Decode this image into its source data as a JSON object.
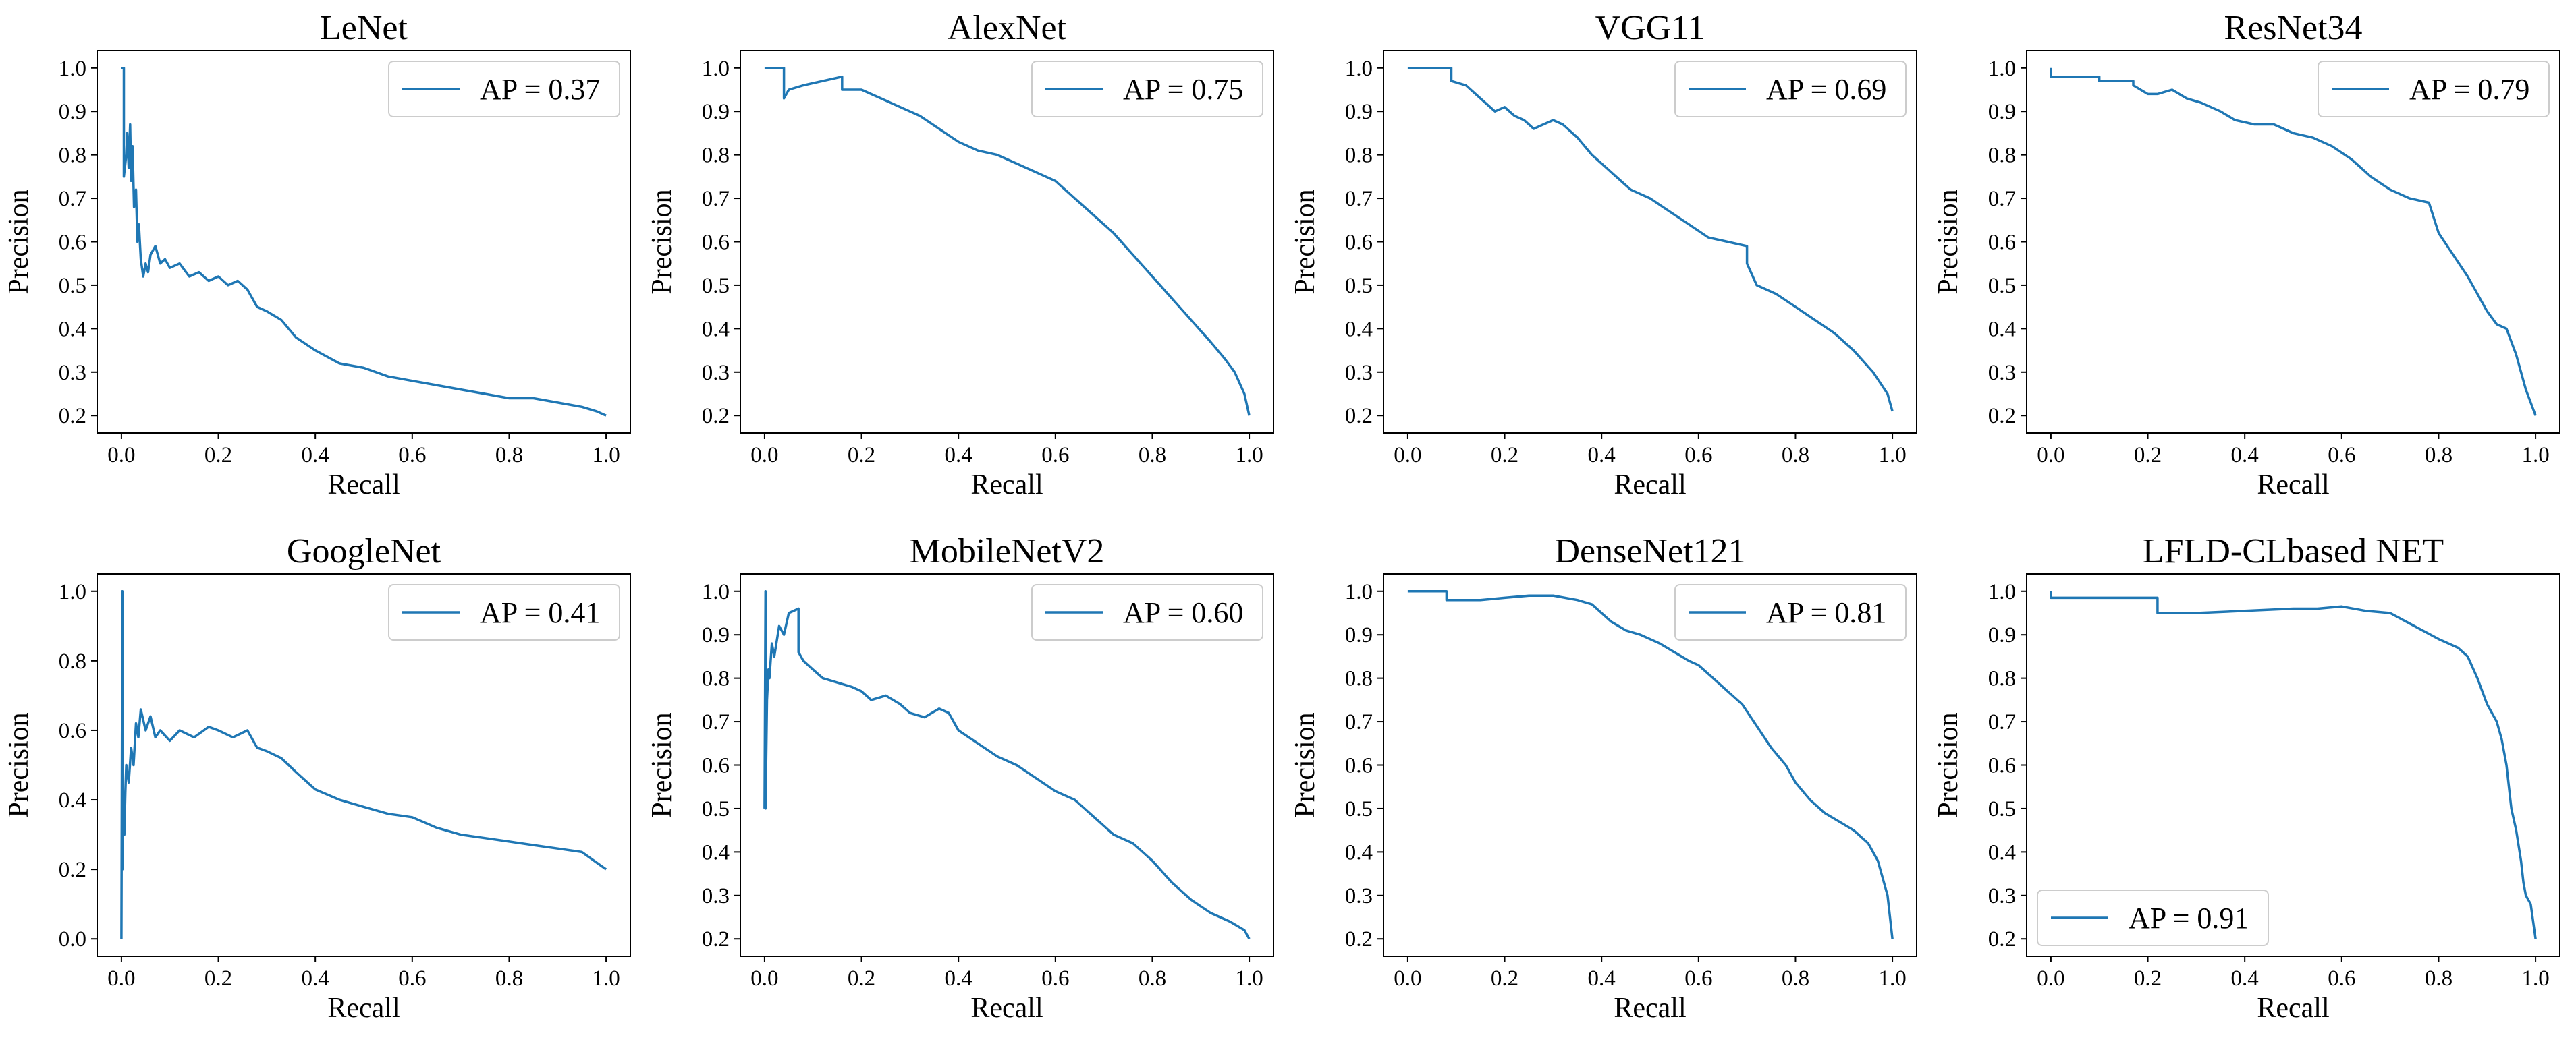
{
  "chart_data": [
    {
      "type": "line",
      "title": "LeNet",
      "xlabel": "Recall",
      "ylabel": "Precision",
      "xlim": [
        -0.05,
        1.05
      ],
      "ylim": [
        0.16,
        1.04
      ],
      "xticks": [
        "0.0",
        "0.2",
        "0.4",
        "0.6",
        "0.8",
        "1.0"
      ],
      "yticks": [
        "0.2",
        "0.3",
        "0.4",
        "0.5",
        "0.6",
        "0.7",
        "0.8",
        "0.9",
        "1.0"
      ],
      "legend": "AP = 0.37",
      "legend_loc": "upper right",
      "series": [
        {
          "name": "AP = 0.37",
          "x": [
            0.0,
            0.005,
            0.005,
            0.01,
            0.012,
            0.015,
            0.018,
            0.02,
            0.023,
            0.026,
            0.03,
            0.033,
            0.036,
            0.04,
            0.045,
            0.05,
            0.055,
            0.06,
            0.07,
            0.08,
            0.09,
            0.1,
            0.12,
            0.14,
            0.16,
            0.18,
            0.2,
            0.22,
            0.24,
            0.26,
            0.28,
            0.3,
            0.33,
            0.36,
            0.4,
            0.45,
            0.5,
            0.55,
            0.6,
            0.65,
            0.7,
            0.75,
            0.8,
            0.85,
            0.9,
            0.95,
            0.98,
            1.0
          ],
          "y": [
            1.0,
            1.0,
            0.75,
            0.8,
            0.85,
            0.77,
            0.87,
            0.74,
            0.82,
            0.68,
            0.72,
            0.6,
            0.64,
            0.56,
            0.52,
            0.55,
            0.53,
            0.57,
            0.59,
            0.55,
            0.56,
            0.54,
            0.55,
            0.52,
            0.53,
            0.51,
            0.52,
            0.5,
            0.51,
            0.49,
            0.45,
            0.44,
            0.42,
            0.38,
            0.35,
            0.32,
            0.31,
            0.29,
            0.28,
            0.27,
            0.26,
            0.25,
            0.24,
            0.24,
            0.23,
            0.22,
            0.21,
            0.2
          ]
        }
      ]
    },
    {
      "type": "line",
      "title": "AlexNet",
      "xlabel": "Recall",
      "ylabel": "Precision",
      "xlim": [
        -0.05,
        1.05
      ],
      "ylim": [
        0.16,
        1.04
      ],
      "xticks": [
        "0.0",
        "0.2",
        "0.4",
        "0.6",
        "0.8",
        "1.0"
      ],
      "yticks": [
        "0.2",
        "0.3",
        "0.4",
        "0.5",
        "0.6",
        "0.7",
        "0.8",
        "0.9",
        "1.0"
      ],
      "legend": "AP = 0.75",
      "legend_loc": "upper right",
      "series": [
        {
          "name": "AP = 0.75",
          "x": [
            0.0,
            0.04,
            0.04,
            0.05,
            0.08,
            0.12,
            0.16,
            0.16,
            0.2,
            0.24,
            0.28,
            0.32,
            0.36,
            0.4,
            0.44,
            0.48,
            0.52,
            0.56,
            0.6,
            0.64,
            0.68,
            0.72,
            0.76,
            0.8,
            0.84,
            0.88,
            0.92,
            0.95,
            0.97,
            0.99,
            1.0
          ],
          "y": [
            1.0,
            1.0,
            0.93,
            0.95,
            0.96,
            0.97,
            0.98,
            0.95,
            0.95,
            0.93,
            0.91,
            0.89,
            0.86,
            0.83,
            0.81,
            0.8,
            0.78,
            0.76,
            0.74,
            0.7,
            0.66,
            0.62,
            0.57,
            0.52,
            0.47,
            0.42,
            0.37,
            0.33,
            0.3,
            0.25,
            0.2
          ]
        }
      ]
    },
    {
      "type": "line",
      "title": "VGG11",
      "xlabel": "Recall",
      "ylabel": "Precision",
      "xlim": [
        -0.05,
        1.05
      ],
      "ylim": [
        0.16,
        1.04
      ],
      "xticks": [
        "0.0",
        "0.2",
        "0.4",
        "0.6",
        "0.8",
        "1.0"
      ],
      "yticks": [
        "0.2",
        "0.3",
        "0.4",
        "0.5",
        "0.6",
        "0.7",
        "0.8",
        "0.9",
        "1.0"
      ],
      "legend": "AP = 0.69",
      "legend_loc": "upper right",
      "series": [
        {
          "name": "AP = 0.69",
          "x": [
            0.0,
            0.09,
            0.09,
            0.12,
            0.14,
            0.16,
            0.18,
            0.2,
            0.22,
            0.24,
            0.26,
            0.28,
            0.3,
            0.32,
            0.35,
            0.38,
            0.42,
            0.46,
            0.5,
            0.54,
            0.58,
            0.62,
            0.66,
            0.7,
            0.7,
            0.72,
            0.76,
            0.8,
            0.84,
            0.88,
            0.92,
            0.96,
            0.99,
            1.0
          ],
          "y": [
            1.0,
            1.0,
            0.97,
            0.96,
            0.94,
            0.92,
            0.9,
            0.91,
            0.89,
            0.88,
            0.86,
            0.87,
            0.88,
            0.87,
            0.84,
            0.8,
            0.76,
            0.72,
            0.7,
            0.67,
            0.64,
            0.61,
            0.6,
            0.59,
            0.55,
            0.5,
            0.48,
            0.45,
            0.42,
            0.39,
            0.35,
            0.3,
            0.25,
            0.21
          ]
        }
      ]
    },
    {
      "type": "line",
      "title": "ResNet34",
      "xlabel": "Recall",
      "ylabel": "Precision",
      "xlim": [
        -0.05,
        1.05
      ],
      "ylim": [
        0.16,
        1.04
      ],
      "xticks": [
        "0.0",
        "0.2",
        "0.4",
        "0.6",
        "0.8",
        "1.0"
      ],
      "yticks": [
        "0.2",
        "0.3",
        "0.4",
        "0.5",
        "0.6",
        "0.7",
        "0.8",
        "0.9",
        "1.0"
      ],
      "legend": "AP = 0.79",
      "legend_loc": "upper right",
      "series": [
        {
          "name": "AP = 0.79",
          "x": [
            0.0,
            0.0,
            0.01,
            0.1,
            0.1,
            0.17,
            0.17,
            0.2,
            0.22,
            0.25,
            0.28,
            0.31,
            0.35,
            0.38,
            0.42,
            0.46,
            0.5,
            0.54,
            0.58,
            0.62,
            0.66,
            0.7,
            0.74,
            0.78,
            0.8,
            0.83,
            0.86,
            0.88,
            0.9,
            0.92,
            0.94,
            0.96,
            0.98,
            1.0
          ],
          "y": [
            1.0,
            0.98,
            0.98,
            0.98,
            0.97,
            0.97,
            0.96,
            0.94,
            0.94,
            0.95,
            0.93,
            0.92,
            0.9,
            0.88,
            0.87,
            0.87,
            0.85,
            0.84,
            0.82,
            0.79,
            0.75,
            0.72,
            0.7,
            0.69,
            0.62,
            0.57,
            0.52,
            0.48,
            0.44,
            0.41,
            0.4,
            0.34,
            0.26,
            0.2
          ]
        }
      ]
    },
    {
      "type": "line",
      "title": "GoogleNet",
      "xlabel": "Recall",
      "ylabel": "Precision",
      "xlim": [
        -0.05,
        1.05
      ],
      "ylim": [
        -0.05,
        1.05
      ],
      "xticks": [
        "0.0",
        "0.2",
        "0.4",
        "0.6",
        "0.8",
        "1.0"
      ],
      "yticks": [
        "0.0",
        "0.2",
        "0.4",
        "0.6",
        "0.8",
        "1.0"
      ],
      "legend": "AP = 0.41",
      "legend_loc": "upper right",
      "series": [
        {
          "name": "AP = 0.41",
          "x": [
            0.0,
            0.002,
            0.002,
            0.004,
            0.006,
            0.008,
            0.01,
            0.015,
            0.02,
            0.025,
            0.03,
            0.035,
            0.04,
            0.05,
            0.06,
            0.07,
            0.08,
            0.1,
            0.12,
            0.15,
            0.18,
            0.2,
            0.23,
            0.26,
            0.28,
            0.3,
            0.33,
            0.36,
            0.4,
            0.45,
            0.5,
            0.55,
            0.6,
            0.65,
            0.7,
            0.75,
            0.8,
            0.85,
            0.9,
            0.95,
            0.98,
            1.0
          ],
          "y": [
            0.0,
            1.0,
            0.2,
            0.35,
            0.3,
            0.42,
            0.5,
            0.45,
            0.55,
            0.5,
            0.62,
            0.58,
            0.66,
            0.6,
            0.64,
            0.58,
            0.6,
            0.57,
            0.6,
            0.58,
            0.61,
            0.6,
            0.58,
            0.6,
            0.55,
            0.54,
            0.52,
            0.48,
            0.43,
            0.4,
            0.38,
            0.36,
            0.35,
            0.32,
            0.3,
            0.29,
            0.28,
            0.27,
            0.26,
            0.25,
            0.22,
            0.2
          ]
        }
      ]
    },
    {
      "type": "line",
      "title": "MobileNetV2",
      "xlabel": "Recall",
      "ylabel": "Precision",
      "xlim": [
        -0.05,
        1.05
      ],
      "ylim": [
        0.16,
        1.04
      ],
      "xticks": [
        "0.0",
        "0.2",
        "0.4",
        "0.6",
        "0.8",
        "1.0"
      ],
      "yticks": [
        "0.2",
        "0.3",
        "0.4",
        "0.5",
        "0.6",
        "0.7",
        "0.8",
        "0.9",
        "1.0"
      ],
      "legend": "AP = 0.60",
      "legend_loc": "upper right",
      "series": [
        {
          "name": "AP = 0.60",
          "x": [
            0.0,
            0.002,
            0.002,
            0.005,
            0.008,
            0.01,
            0.015,
            0.02,
            0.03,
            0.04,
            0.05,
            0.07,
            0.07,
            0.08,
            0.1,
            0.12,
            0.15,
            0.18,
            0.2,
            0.22,
            0.25,
            0.28,
            0.3,
            0.33,
            0.36,
            0.38,
            0.4,
            0.44,
            0.48,
            0.52,
            0.56,
            0.6,
            0.64,
            0.68,
            0.72,
            0.76,
            0.8,
            0.84,
            0.88,
            0.92,
            0.96,
            0.99,
            1.0
          ],
          "y": [
            0.5,
            1.0,
            0.5,
            0.75,
            0.82,
            0.8,
            0.88,
            0.85,
            0.92,
            0.9,
            0.95,
            0.96,
            0.86,
            0.84,
            0.82,
            0.8,
            0.79,
            0.78,
            0.77,
            0.75,
            0.76,
            0.74,
            0.72,
            0.71,
            0.73,
            0.72,
            0.68,
            0.65,
            0.62,
            0.6,
            0.57,
            0.54,
            0.52,
            0.48,
            0.44,
            0.42,
            0.38,
            0.33,
            0.29,
            0.26,
            0.24,
            0.22,
            0.2
          ]
        }
      ]
    },
    {
      "type": "line",
      "title": "DenseNet121",
      "xlabel": "Recall",
      "ylabel": "Precision",
      "xlim": [
        -0.05,
        1.05
      ],
      "ylim": [
        0.16,
        1.04
      ],
      "xticks": [
        "0.0",
        "0.2",
        "0.4",
        "0.6",
        "0.8",
        "1.0"
      ],
      "yticks": [
        "0.2",
        "0.3",
        "0.4",
        "0.5",
        "0.6",
        "0.7",
        "0.8",
        "0.9",
        "1.0"
      ],
      "legend": "AP = 0.81",
      "legend_loc": "upper right",
      "series": [
        {
          "name": "AP = 0.81",
          "x": [
            0.0,
            0.08,
            0.08,
            0.15,
            0.2,
            0.25,
            0.3,
            0.35,
            0.38,
            0.4,
            0.42,
            0.45,
            0.48,
            0.52,
            0.55,
            0.58,
            0.6,
            0.63,
            0.66,
            0.69,
            0.72,
            0.75,
            0.78,
            0.8,
            0.83,
            0.86,
            0.89,
            0.92,
            0.95,
            0.97,
            0.99,
            1.0
          ],
          "y": [
            1.0,
            1.0,
            0.98,
            0.98,
            0.985,
            0.99,
            0.99,
            0.98,
            0.97,
            0.95,
            0.93,
            0.91,
            0.9,
            0.88,
            0.86,
            0.84,
            0.83,
            0.8,
            0.77,
            0.74,
            0.69,
            0.64,
            0.6,
            0.56,
            0.52,
            0.49,
            0.47,
            0.45,
            0.42,
            0.38,
            0.3,
            0.2
          ]
        }
      ]
    },
    {
      "type": "line",
      "title": "LFLD-CLbased NET",
      "xlabel": "Recall",
      "ylabel": "Precision",
      "xlim": [
        -0.05,
        1.05
      ],
      "ylim": [
        0.16,
        1.04
      ],
      "xticks": [
        "0.0",
        "0.2",
        "0.4",
        "0.6",
        "0.8",
        "1.0"
      ],
      "yticks": [
        "0.2",
        "0.3",
        "0.4",
        "0.5",
        "0.6",
        "0.7",
        "0.8",
        "0.9",
        "1.0"
      ],
      "legend": "AP = 0.91",
      "legend_loc": "lower left",
      "series": [
        {
          "name": "AP = 0.91",
          "x": [
            0.0,
            0.0,
            0.01,
            0.22,
            0.22,
            0.3,
            0.4,
            0.5,
            0.55,
            0.6,
            0.65,
            0.7,
            0.75,
            0.8,
            0.84,
            0.86,
            0.88,
            0.9,
            0.92,
            0.93,
            0.94,
            0.95,
            0.96,
            0.97,
            0.975,
            0.98,
            0.99,
            1.0
          ],
          "y": [
            1.0,
            0.985,
            0.985,
            0.985,
            0.95,
            0.95,
            0.955,
            0.96,
            0.96,
            0.965,
            0.955,
            0.95,
            0.92,
            0.89,
            0.87,
            0.85,
            0.8,
            0.74,
            0.7,
            0.66,
            0.6,
            0.5,
            0.45,
            0.38,
            0.33,
            0.3,
            0.28,
            0.2
          ]
        }
      ]
    }
  ]
}
